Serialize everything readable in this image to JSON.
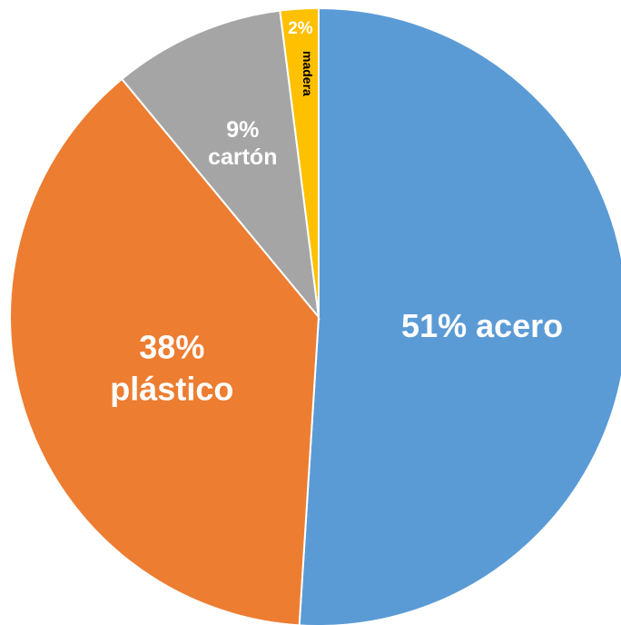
{
  "chart_data": {
    "type": "pie",
    "title": "",
    "slices": [
      {
        "label": "acero",
        "value": 51,
        "text": "51% acero",
        "color": "#5B9BD5",
        "lines": [
          "51% acero"
        ],
        "size": "big"
      },
      {
        "label": "plástico",
        "value": 38,
        "text": "38% plástico",
        "color": "#ED7D31",
        "lines": [
          "38%",
          "plástico"
        ],
        "size": "big"
      },
      {
        "label": "cartón",
        "value": 9,
        "text": "9% cartón",
        "color": "#A5A5A5",
        "lines": [
          "9%",
          "cartón"
        ],
        "size": "mid"
      },
      {
        "label": "madera",
        "value": 2,
        "text": "2%",
        "color": "#FFC000",
        "lines": [
          "2%"
        ],
        "size": "small",
        "extra_label": "madera"
      }
    ],
    "start_angle_deg": 0,
    "direction": "clockwise",
    "legend": "none"
  }
}
